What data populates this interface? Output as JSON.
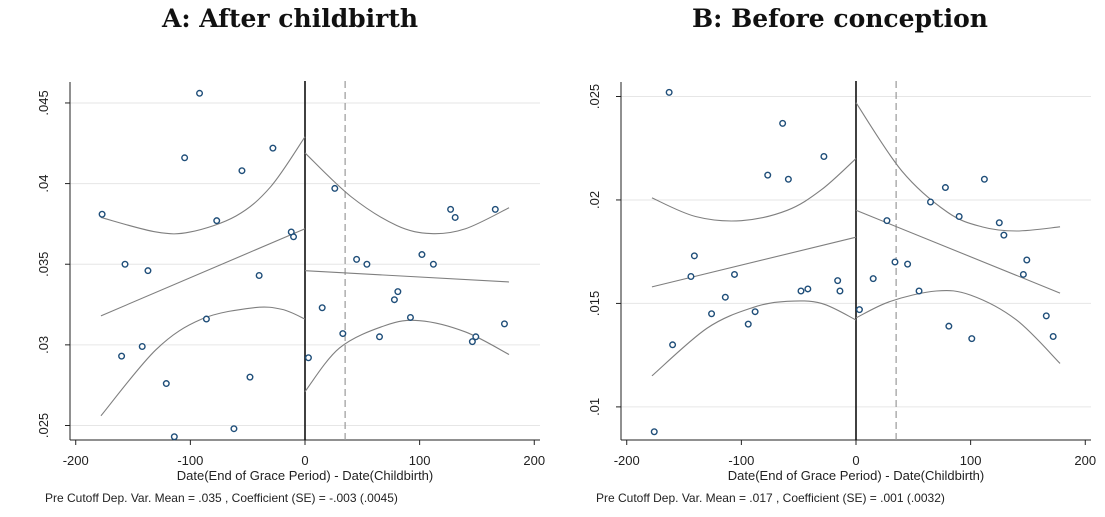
{
  "chart_data": [
    {
      "type": "scatter",
      "title": "A: After childbirth",
      "xlabel": "Date(End of Grace Period) - Date(Childbirth)",
      "note": "Pre Cutoff Dep. Var. Mean = .035 , Coefficient (SE) = -.003 (.0045)",
      "xlim": [
        -205,
        205
      ],
      "ylim": [
        0.0241,
        0.0463
      ],
      "xticks": [
        -200,
        -100,
        0,
        100,
        200
      ],
      "xtick_labels": [
        "-200",
        "-100",
        "0",
        "100",
        "200"
      ],
      "yticks": [
        0.025,
        0.03,
        0.035,
        0.04,
        0.045
      ],
      "ytick_labels": [
        ".025",
        ".03",
        ".035",
        ".04",
        ".045"
      ],
      "grid": true,
      "cutoff": 0,
      "dashed_line_x": 35,
      "points": [
        [
          -177,
          0.0381
        ],
        [
          -160,
          0.0293
        ],
        [
          -157,
          0.035
        ],
        [
          -142,
          0.0299
        ],
        [
          -137,
          0.0346
        ],
        [
          -121,
          0.0276
        ],
        [
          -114,
          0.0243
        ],
        [
          -105,
          0.0416
        ],
        [
          -92,
          0.0456
        ],
        [
          -86,
          0.0316
        ],
        [
          -77,
          0.0377
        ],
        [
          -62,
          0.0248
        ],
        [
          -55,
          0.0408
        ],
        [
          -48,
          0.028
        ],
        [
          -40,
          0.0343
        ],
        [
          -28,
          0.0422
        ],
        [
          -12,
          0.037
        ],
        [
          -10,
          0.0367
        ],
        [
          3,
          0.0292
        ],
        [
          15,
          0.0323
        ],
        [
          26,
          0.0397
        ],
        [
          33,
          0.0307
        ],
        [
          45,
          0.0353
        ],
        [
          54,
          0.035
        ],
        [
          65,
          0.0305
        ],
        [
          78,
          0.0328
        ],
        [
          81,
          0.0333
        ],
        [
          92,
          0.0317
        ],
        [
          102,
          0.0356
        ],
        [
          112,
          0.035
        ],
        [
          127,
          0.0384
        ],
        [
          131,
          0.0379
        ],
        [
          146,
          0.0302
        ],
        [
          149,
          0.0305
        ],
        [
          166,
          0.0384
        ],
        [
          174,
          0.0313
        ]
      ],
      "fit_left": {
        "x": [
          -178,
          0
        ],
        "y": [
          0.0318,
          0.0372
        ]
      },
      "fit_right": {
        "x": [
          0,
          178
        ],
        "y": [
          0.0346,
          0.0339
        ]
      },
      "ci_left_upper": {
        "x": [
          -178,
          -130,
          -100,
          -60,
          -30,
          0
        ],
        "y": [
          0.0379,
          0.037,
          0.037,
          0.038,
          0.0398,
          0.0429
        ]
      },
      "ci_left_lower": {
        "x": [
          -178,
          -130,
          -90,
          -45,
          -20,
          0
        ],
        "y": [
          0.0256,
          0.0297,
          0.0316,
          0.0323,
          0.0322,
          0.0316
        ]
      },
      "ci_right_upper": {
        "x": [
          0,
          40,
          80,
          110,
          140,
          178
        ],
        "y": [
          0.0419,
          0.0392,
          0.0374,
          0.0369,
          0.0372,
          0.0385
        ]
      },
      "ci_right_lower": {
        "x": [
          0,
          30,
          70,
          100,
          140,
          178
        ],
        "y": [
          0.0271,
          0.0298,
          0.0312,
          0.0315,
          0.0308,
          0.0294
        ]
      }
    },
    {
      "type": "scatter",
      "title": "B: Before conception",
      "xlabel": "Date(End of Grace Period) - Date(Childbirth)",
      "note": "Pre Cutoff Dep. Var. Mean = .017 , Coefficient (SE) = .001 (.0032)",
      "xlim": [
        -205,
        205
      ],
      "ylim": [
        0.0084,
        0.0257
      ],
      "xticks": [
        -200,
        -100,
        0,
        100,
        200
      ],
      "xtick_labels": [
        "-200",
        "-100",
        "0",
        "100",
        "200"
      ],
      "yticks": [
        0.01,
        0.015,
        0.02,
        0.025
      ],
      "ytick_labels": [
        ".01",
        ".015",
        ".02",
        ".025"
      ],
      "grid": true,
      "cutoff": 0,
      "dashed_line_x": 35,
      "points": [
        [
          -176,
          0.0088
        ],
        [
          -163,
          0.0252
        ],
        [
          -160,
          0.013
        ],
        [
          -144,
          0.0163
        ],
        [
          -141,
          0.0173
        ],
        [
          -126,
          0.0145
        ],
        [
          -114,
          0.0153
        ],
        [
          -106,
          0.0164
        ],
        [
          -94,
          0.014
        ],
        [
          -88,
          0.0146
        ],
        [
          -77,
          0.0212
        ],
        [
          -64,
          0.0237
        ],
        [
          -59,
          0.021
        ],
        [
          -48,
          0.0156
        ],
        [
          -42,
          0.0157
        ],
        [
          -28,
          0.0221
        ],
        [
          -16,
          0.0161
        ],
        [
          -14,
          0.0156
        ],
        [
          3,
          0.0147
        ],
        [
          15,
          0.0162
        ],
        [
          27,
          0.019
        ],
        [
          34,
          0.017
        ],
        [
          45,
          0.0169
        ],
        [
          55,
          0.0156
        ],
        [
          65,
          0.0199
        ],
        [
          78,
          0.0206
        ],
        [
          81,
          0.0139
        ],
        [
          90,
          0.0192
        ],
        [
          101,
          0.0133
        ],
        [
          112,
          0.021
        ],
        [
          125,
          0.0189
        ],
        [
          129,
          0.0183
        ],
        [
          146,
          0.0164
        ],
        [
          149,
          0.0171
        ],
        [
          166,
          0.0144
        ],
        [
          172,
          0.0134
        ]
      ],
      "fit_left": {
        "x": [
          -178,
          0
        ],
        "y": [
          0.0158,
          0.0182
        ]
      },
      "fit_right": {
        "x": [
          0,
          178
        ],
        "y": [
          0.0195,
          0.0155
        ]
      },
      "ci_left_upper": {
        "x": [
          -178,
          -140,
          -100,
          -60,
          -30,
          0
        ],
        "y": [
          0.0201,
          0.0192,
          0.019,
          0.0195,
          0.0205,
          0.022
        ]
      },
      "ci_left_lower": {
        "x": [
          -178,
          -130,
          -90,
          -60,
          -30,
          0
        ],
        "y": [
          0.0115,
          0.0138,
          0.0148,
          0.0151,
          0.015,
          0.0142
        ]
      },
      "ci_right_upper": {
        "x": [
          0,
          40,
          80,
          110,
          140,
          178
        ],
        "y": [
          0.0247,
          0.0214,
          0.0194,
          0.0187,
          0.0185,
          0.0187
        ]
      },
      "ci_right_lower": {
        "x": [
          0,
          30,
          70,
          100,
          140,
          178
        ],
        "y": [
          0.0143,
          0.0151,
          0.0156,
          0.0154,
          0.0142,
          0.0121
        ]
      }
    }
  ],
  "colors": {
    "marker_stroke": "#1f4e79",
    "marker_fill": "#ffffff",
    "fit_line": "#7f7f7f",
    "grid": "#e6e6e6",
    "axis": "#222222",
    "cutoff_line": "#111111",
    "dashed_line": "#9a9a9a"
  }
}
